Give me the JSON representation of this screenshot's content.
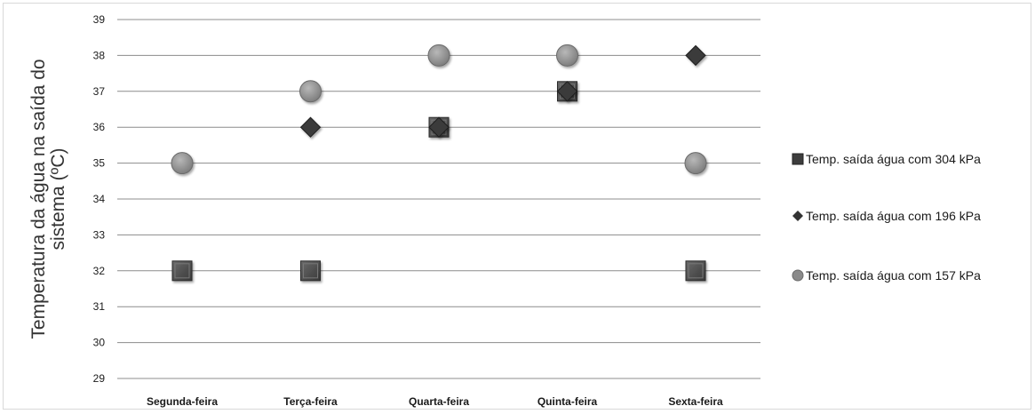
{
  "chart_data": {
    "type": "scatter",
    "title": "",
    "xlabel": "",
    "ylabel_lines": [
      "Temperatura da água na saída do",
      "sistema (ºC)"
    ],
    "categories": [
      "Segunda-feira",
      "Terça-feira",
      "Quarta-feira",
      "Quinta-feira",
      "Sexta-feira"
    ],
    "ylim": [
      29,
      39
    ],
    "yticks": [
      29,
      30,
      31,
      32,
      33,
      34,
      35,
      36,
      37,
      38,
      39
    ],
    "grid": true,
    "legend_position": "right",
    "series": [
      {
        "name": "Temp. saída água com 304 kPa",
        "marker": "square",
        "color": "#4a4a4a",
        "values": [
          32,
          32,
          36,
          37,
          32
        ]
      },
      {
        "name": "Temp. saída água com 196 kPa",
        "marker": "diamond",
        "color": "#333333",
        "values": [
          null,
          36,
          36,
          37,
          38
        ]
      },
      {
        "name": "Temp. saída água com 157 kPa",
        "marker": "circle",
        "color": "#8a8a8a",
        "values": [
          35,
          37,
          38,
          38,
          35
        ]
      }
    ]
  }
}
